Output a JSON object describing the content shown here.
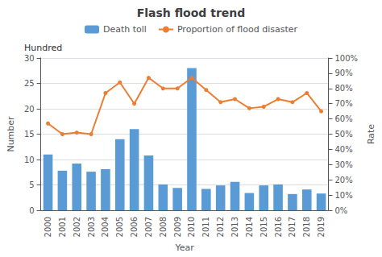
{
  "chart_data": {
    "type": "bar",
    "title": "Flash flood trend",
    "xlabel": "Year",
    "ylabel": "Number",
    "y2label": "Rate",
    "annotation": "Hundred",
    "categories": [
      "2000",
      "2001",
      "2002",
      "2003",
      "2004",
      "2005",
      "2006",
      "2007",
      "2008",
      "2009",
      "2010",
      "2011",
      "2012",
      "2013",
      "2014",
      "2015",
      "2016",
      "2017",
      "2018",
      "2019"
    ],
    "series": [
      {
        "name": "Death toll",
        "type": "bar",
        "color": "#5B9BD5",
        "values": [
          11,
          7.8,
          9.2,
          7.6,
          8.1,
          14,
          16,
          10.8,
          5.1,
          4.4,
          28,
          4.2,
          4.9,
          5.6,
          3.4,
          4.9,
          5.1,
          3.2,
          4.1,
          3.3
        ]
      },
      {
        "name": "Proportion of flood disaster",
        "type": "line",
        "color": "#ED7D31",
        "marker": "circle",
        "axis": "y2",
        "values": [
          0.57,
          0.5,
          0.51,
          0.5,
          0.77,
          0.84,
          0.7,
          0.87,
          0.8,
          0.8,
          0.87,
          0.79,
          0.71,
          0.73,
          0.67,
          0.68,
          0.73,
          0.71,
          0.77,
          0.65
        ]
      }
    ],
    "ylim": [
      0,
      30
    ],
    "yticks": [
      0,
      5,
      10,
      15,
      20,
      25,
      30
    ],
    "y2lim": [
      0,
      1.0
    ],
    "y2ticks": [
      {
        "value": 0.0,
        "label": "0%"
      },
      {
        "value": 0.1,
        "label": "10%"
      },
      {
        "value": 0.2,
        "label": "20%"
      },
      {
        "value": 0.3,
        "label": "30%"
      },
      {
        "value": 0.4,
        "label": "40%"
      },
      {
        "value": 0.5,
        "label": "50%"
      },
      {
        "value": 0.6,
        "label": "60%"
      },
      {
        "value": 0.7,
        "label": "70%"
      },
      {
        "value": 0.8,
        "label": "80%"
      },
      {
        "value": 0.9,
        "label": "90%"
      },
      {
        "value": 1.0,
        "label": "100%"
      }
    ],
    "grid": true,
    "legend": "top"
  }
}
